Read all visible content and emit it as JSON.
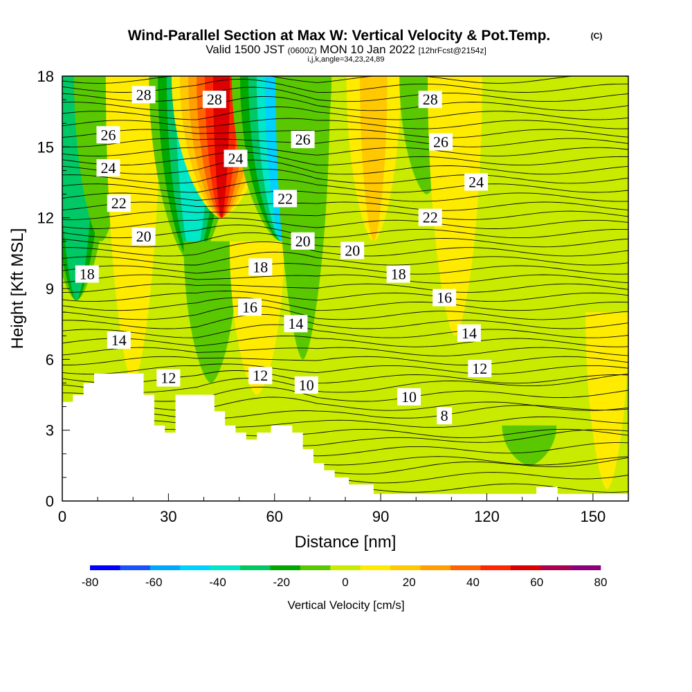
{
  "header": {
    "title": "Wind-Parallel Section at Max W: Vertical Velocity & Pot.Temp.",
    "title_mark": "(C)",
    "valid_prefix": "Valid 1500 JST",
    "valid_zulu": "(0600Z)",
    "valid_date": "MON 10 Jan 2022",
    "fcst": "[12hrFcst@2154z]",
    "indices": "i,j,k,angle=34,23,24,89"
  },
  "chart_data": {
    "type": "heatmap",
    "xlabel": "Distance [nm]",
    "ylabel": "Height [Kft MSL]",
    "xlim": [
      0,
      160
    ],
    "ylim": [
      0,
      18
    ],
    "x_ticks": [
      "0",
      "30",
      "60",
      "90",
      "120",
      "150"
    ],
    "y_ticks": [
      "0",
      "3",
      "6",
      "9",
      "12",
      "15",
      "18"
    ],
    "colorbar": {
      "label": "Vertical Velocity [cm/s]",
      "tick_labels": [
        "-80",
        "-60",
        "-40",
        "-20",
        "0",
        "20",
        "40",
        "60",
        "80"
      ],
      "colors": [
        "#0000ff",
        "#1a52ff",
        "#00a8ff",
        "#00d2ff",
        "#00e8c8",
        "#00c864",
        "#00a800",
        "#5ac800",
        "#c8eb00",
        "#ffeb00",
        "#ffc800",
        "#ffa000",
        "#ff6400",
        "#ff2800",
        "#dc0000",
        "#aa0050",
        "#8c0078"
      ]
    },
    "vertical_velocity_features": [
      {
        "x": 4,
        "y0": 8.5,
        "y1": 18,
        "w_cm_s": -35
      },
      {
        "x": 11,
        "y0": 11,
        "y1": 18,
        "w_cm_s": -15
      },
      {
        "x": 20,
        "y0": 5,
        "y1": 18,
        "w_cm_s": 12
      },
      {
        "x": 37,
        "y0": 10,
        "y1": 18,
        "w_cm_s": -45
      },
      {
        "x": 45,
        "y0": 12,
        "y1": 18,
        "w_cm_s": 55
      },
      {
        "x": 42,
        "y0": 5,
        "y1": 11,
        "w_cm_s": -15
      },
      {
        "x": 55,
        "y0": 4.5,
        "y1": 11,
        "w_cm_s": 12
      },
      {
        "x": 62,
        "y0": 11,
        "y1": 18,
        "w_cm_s": -55
      },
      {
        "x": 68,
        "y0": 6,
        "y1": 18,
        "w_cm_s": -15
      },
      {
        "x": 88,
        "y0": 11,
        "y1": 18,
        "w_cm_s": 15
      },
      {
        "x": 103,
        "y0": 13,
        "y1": 18,
        "w_cm_s": -12
      },
      {
        "x": 111,
        "y0": 7,
        "y1": 18,
        "w_cm_s": 12
      },
      {
        "x": 132,
        "y0": 1.5,
        "y1": 3.2,
        "w_cm_s": -12
      },
      {
        "x": 154,
        "y0": 0.5,
        "y1": 8,
        "w_cm_s": 8
      }
    ],
    "pot_temp_contours": {
      "units": "C",
      "labels": [
        {
          "text": "28",
          "x": 23,
          "y": 17.2
        },
        {
          "text": "28",
          "x": 43,
          "y": 17.0
        },
        {
          "text": "28",
          "x": 104,
          "y": 17.0
        },
        {
          "text": "26",
          "x": 13,
          "y": 15.5
        },
        {
          "text": "26",
          "x": 68,
          "y": 15.3
        },
        {
          "text": "26",
          "x": 107,
          "y": 15.2
        },
        {
          "text": "24",
          "x": 13,
          "y": 14.1
        },
        {
          "text": "24",
          "x": 49,
          "y": 14.5
        },
        {
          "text": "24",
          "x": 117,
          "y": 13.5
        },
        {
          "text": "22",
          "x": 16,
          "y": 12.6
        },
        {
          "text": "22",
          "x": 63,
          "y": 12.8
        },
        {
          "text": "22",
          "x": 104,
          "y": 12.0
        },
        {
          "text": "20",
          "x": 23,
          "y": 11.2
        },
        {
          "text": "20",
          "x": 68,
          "y": 11.0
        },
        {
          "text": "20",
          "x": 82,
          "y": 10.6
        },
        {
          "text": "18",
          "x": 7,
          "y": 9.6
        },
        {
          "text": "18",
          "x": 56,
          "y": 9.9
        },
        {
          "text": "18",
          "x": 95,
          "y": 9.6
        },
        {
          "text": "16",
          "x": 53,
          "y": 8.2
        },
        {
          "text": "16",
          "x": 108,
          "y": 8.6
        },
        {
          "text": "14",
          "x": 16,
          "y": 6.8
        },
        {
          "text": "14",
          "x": 66,
          "y": 7.5
        },
        {
          "text": "14",
          "x": 115,
          "y": 7.1
        },
        {
          "text": "12",
          "x": 30,
          "y": 5.2
        },
        {
          "text": "12",
          "x": 56,
          "y": 5.3
        },
        {
          "text": "12",
          "x": 118,
          "y": 5.6
        },
        {
          "text": "10",
          "x": 69,
          "y": 4.9
        },
        {
          "text": "10",
          "x": 98,
          "y": 4.4
        },
        {
          "text": "8",
          "x": 108,
          "y": 3.6
        }
      ]
    },
    "terrain_height_kft": [
      [
        0,
        4.2
      ],
      [
        3,
        4.5
      ],
      [
        6,
        5.0
      ],
      [
        9,
        5.4
      ],
      [
        23,
        4.5
      ],
      [
        26,
        3.2
      ],
      [
        29,
        2.9
      ],
      [
        32,
        4.5
      ],
      [
        43,
        3.8
      ],
      [
        46,
        3.2
      ],
      [
        49,
        2.9
      ],
      [
        52,
        2.6
      ],
      [
        55,
        2.9
      ],
      [
        59,
        3.2
      ],
      [
        65,
        2.9
      ],
      [
        68,
        2.2
      ],
      [
        71,
        1.6
      ],
      [
        74,
        1.3
      ],
      [
        77,
        1.0
      ],
      [
        81,
        0.7
      ],
      [
        88,
        0.3
      ],
      [
        90,
        0.3
      ],
      [
        134,
        0.6
      ],
      [
        140,
        0.3
      ],
      [
        160,
        0.3
      ]
    ]
  }
}
